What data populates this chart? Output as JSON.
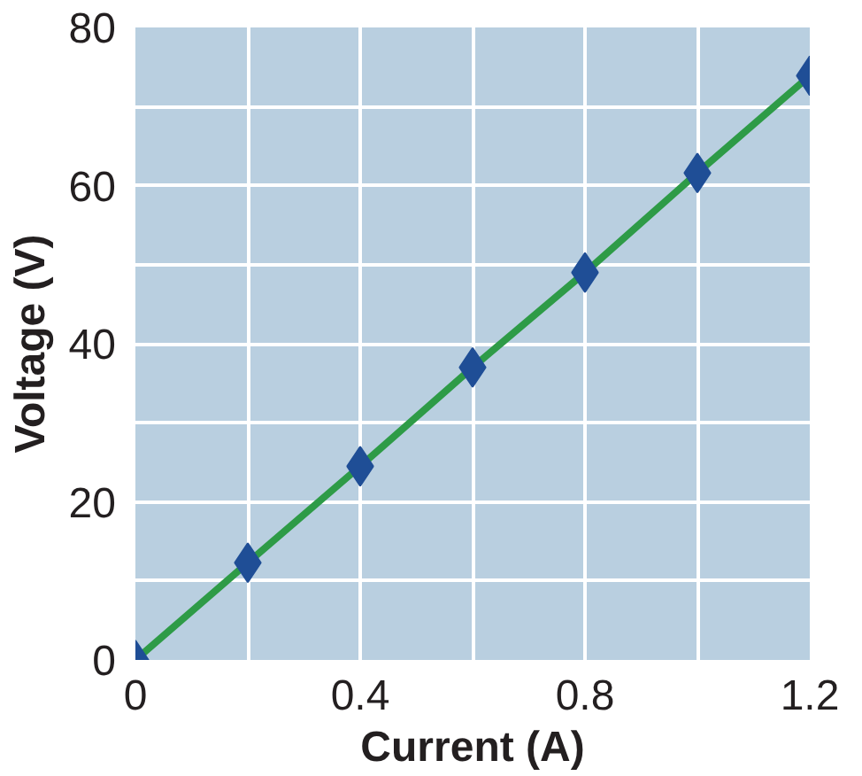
{
  "chart_data": {
    "type": "line",
    "xlabel": "Current (A)",
    "ylabel": "Voltage (V)",
    "x": [
      0,
      0.2,
      0.4,
      0.6,
      0.8,
      1.0,
      1.2
    ],
    "series": [
      {
        "color": "#2e9b47",
        "values": [
          0,
          12.3,
          24.5,
          37,
          49,
          61.6,
          73.9
        ]
      }
    ],
    "marker": "diamond",
    "line_style": "solid",
    "grid": true,
    "xlim": [
      0,
      1.2
    ],
    "ylim": [
      0,
      80
    ],
    "xticks": [
      0,
      {
        "value": 0.2,
        "label": null
      },
      0.4,
      {
        "value": 0.6,
        "label": null
      },
      0.8,
      {
        "value": 1.0,
        "label": null
      },
      1.2
    ],
    "yticks": [
      0,
      {
        "value": 10,
        "label": null
      },
      20,
      {
        "value": 30,
        "label": null
      },
      40,
      {
        "value": 50,
        "label": null
      },
      60,
      {
        "value": 70,
        "label": null
      },
      80
    ]
  }
}
